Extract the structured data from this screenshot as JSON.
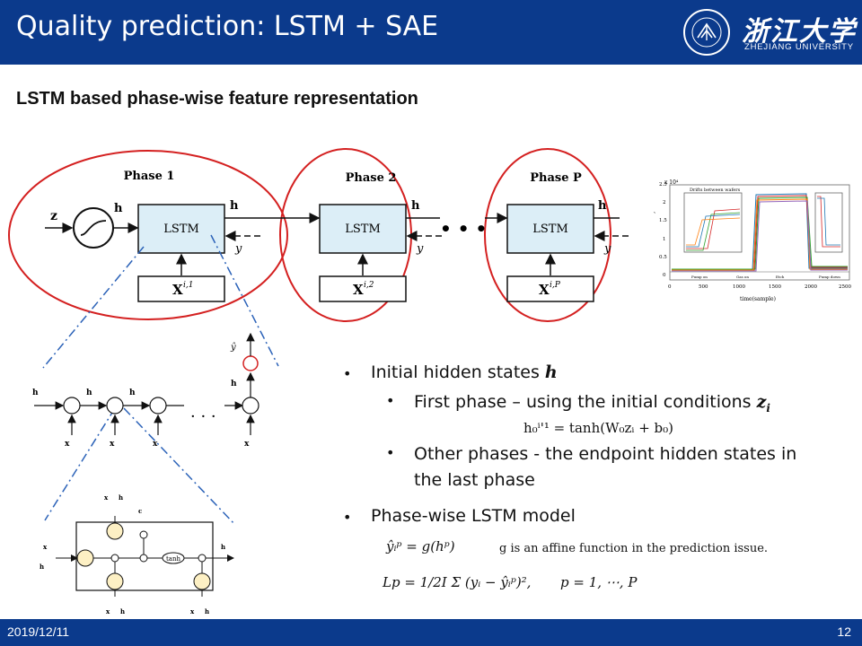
{
  "header": {
    "title": "Quality prediction: LSTM + SAE",
    "university_cn": "浙江大学",
    "university_en": "ZHEJIANG UNIVERSITY",
    "seal_text": "ZHEJIANG UNIVERSITY"
  },
  "subtitle": "LSTM based phase-wise feature representation",
  "diagram": {
    "phases": [
      "Phase 1",
      "Phase 2",
      "Phase P"
    ],
    "cell_label": "LSTM",
    "inputs": [
      "X",
      "X",
      "X"
    ],
    "input_sup": [
      "i,1",
      "i,2",
      "i,P"
    ],
    "input_labels": [
      "z",
      "h",
      "y",
      "h",
      "y",
      "h",
      "y"
    ],
    "ellipsis": "• • •",
    "unroll_dots": "· · ·",
    "detail_gate_label": "tanh",
    "colors": {
      "circle": "#d42020",
      "cellbox": "#dceef7",
      "dashdot": "#2b62b8"
    }
  },
  "inset_chart": {
    "exponent_label": "x 10⁴",
    "inner_title": "Drifts between wafers",
    "ylabel": "intensity",
    "xlabel": "time(sample)",
    "xticks": [
      "0",
      "500",
      "1000",
      "1500",
      "2000",
      "2500"
    ],
    "yticks": [
      "0",
      "0.5",
      "1",
      "1.5",
      "2",
      "2.5"
    ],
    "stage_labels": [
      "Pump on",
      "Gas on",
      "Etch",
      "Pump down"
    ]
  },
  "bullets": {
    "b1": "Initial hidden states ",
    "b1_var": "h",
    "b1a": "First phase – using the initial conditions ",
    "b1a_var": "z",
    "b1a_sub": "i",
    "eq1": "h₀ⁱ'¹ = tanh(W₀zᵢ + b₀)",
    "b1b_line1": "Other phases - the endpoint hidden states in",
    "b1b_line2": "the last phase",
    "b2": "Phase-wise LSTM model",
    "eq2": "ŷᵢᵖ = g(hᵖ)",
    "eq2_note": "g is an affine function in the prediction issue.",
    "eq3": "Lp = 1/2I Σ (yᵢ − ŷᵢᵖ)²,",
    "eq3_range": "p = 1, ⋯, P"
  },
  "footer": {
    "date": "2019/12/11",
    "page": "12"
  }
}
